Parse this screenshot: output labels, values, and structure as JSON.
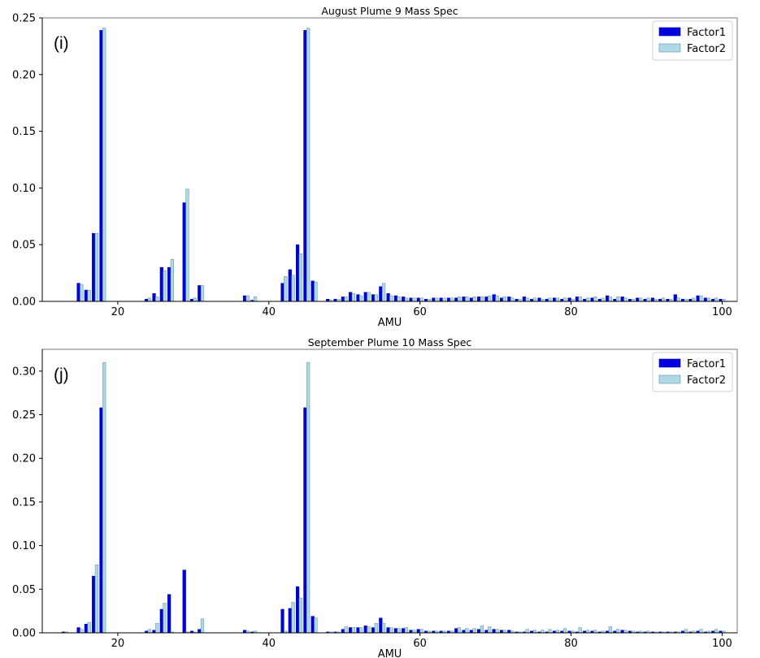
{
  "chart_data": [
    {
      "type": "bar",
      "title": "August Plume 9 Mass Spec",
      "panel_label": "(i)",
      "xlabel": "AMU",
      "ylabel": "",
      "xlim": [
        10,
        102
      ],
      "ylim": [
        0,
        0.25
      ],
      "xticks": [
        20,
        40,
        60,
        80,
        100
      ],
      "yticks": [
        "0.00",
        "0.05",
        "0.10",
        "0.15",
        "0.20",
        "0.25"
      ],
      "legend_position": "top-right",
      "colors": {
        "Factor1": "#0000dd",
        "Factor2": "#add8e6"
      },
      "x": [
        13,
        15,
        16,
        17,
        18,
        24,
        25,
        26,
        27,
        29,
        30,
        31,
        37,
        38,
        42,
        43,
        44,
        45,
        46,
        48,
        49,
        50,
        51,
        52,
        53,
        54,
        55,
        56,
        57,
        58,
        59,
        60,
        61,
        62,
        63,
        64,
        65,
        66,
        67,
        68,
        69,
        70,
        71,
        72,
        73,
        74,
        75,
        76,
        77,
        78,
        79,
        80,
        81,
        82,
        83,
        84,
        85,
        86,
        87,
        88,
        89,
        90,
        91,
        92,
        93,
        94,
        95,
        96,
        97,
        98,
        99,
        100
      ],
      "series": [
        {
          "name": "Factor1",
          "values": [
            0,
            0.016,
            0.01,
            0.06,
            0.239,
            0.002,
            0.007,
            0.03,
            0.03,
            0.087,
            0.002,
            0.014,
            0.005,
            0.001,
            0.016,
            0.028,
            0.05,
            0.239,
            0.018,
            0.002,
            0.002,
            0.004,
            0.008,
            0.006,
            0.008,
            0.006,
            0.013,
            0.007,
            0.005,
            0.004,
            0.003,
            0.003,
            0.002,
            0.003,
            0.003,
            0.003,
            0.003,
            0.004,
            0.003,
            0.004,
            0.004,
            0.006,
            0.003,
            0.004,
            0.002,
            0.004,
            0.002,
            0.003,
            0.002,
            0.003,
            0.002,
            0.003,
            0.004,
            0.002,
            0.003,
            0.002,
            0.005,
            0.002,
            0.004,
            0.002,
            0.003,
            0.002,
            0.003,
            0.002,
            0.002,
            0.006,
            0.002,
            0.002,
            0.005,
            0.003,
            0.002,
            0.002
          ]
        },
        {
          "name": "Factor2",
          "values": [
            0,
            0.015,
            0.01,
            0.06,
            0.241,
            0.003,
            0.004,
            0.027,
            0.037,
            0.099,
            0.003,
            0.014,
            0.005,
            0.004,
            0.022,
            0.023,
            0.042,
            0.241,
            0.017,
            0.001,
            0.002,
            0.004,
            0.007,
            0.005,
            0.008,
            0.006,
            0.016,
            0.005,
            0.004,
            0.003,
            0.003,
            0.003,
            0.002,
            0.003,
            0.003,
            0.003,
            0.004,
            0.004,
            0.004,
            0.004,
            0.005,
            0.005,
            0.004,
            0.003,
            0.002,
            0.003,
            0.003,
            0.002,
            0.003,
            0.003,
            0.003,
            0.002,
            0.004,
            0.003,
            0.004,
            0.003,
            0.004,
            0.004,
            0.003,
            0.002,
            0.003,
            0.003,
            0.002,
            0.003,
            0.002,
            0.003,
            0.002,
            0.003,
            0.005,
            0.003,
            0.003,
            0.002
          ]
        }
      ]
    },
    {
      "type": "bar",
      "title": "September Plume 10 Mass Spec",
      "panel_label": "(j)",
      "xlabel": "AMU",
      "ylabel": "",
      "xlim": [
        10,
        102
      ],
      "ylim": [
        0,
        0.325
      ],
      "xticks": [
        20,
        40,
        60,
        80,
        100
      ],
      "yticks": [
        "0.00",
        "0.05",
        "0.10",
        "0.15",
        "0.20",
        "0.25",
        "0.30"
      ],
      "legend_position": "top-right",
      "colors": {
        "Factor1": "#0000dd",
        "Factor2": "#add8e6"
      },
      "x": [
        13,
        15,
        16,
        17,
        18,
        24,
        25,
        26,
        27,
        29,
        30,
        31,
        37,
        38,
        42,
        43,
        44,
        45,
        46,
        48,
        49,
        50,
        51,
        52,
        53,
        54,
        55,
        56,
        57,
        58,
        59,
        60,
        61,
        62,
        63,
        64,
        65,
        66,
        67,
        68,
        69,
        70,
        71,
        72,
        73,
        74,
        75,
        76,
        77,
        78,
        79,
        80,
        81,
        82,
        83,
        84,
        85,
        86,
        87,
        88,
        89,
        90,
        91,
        92,
        93,
        94,
        95,
        96,
        97,
        98,
        99,
        100
      ],
      "series": [
        {
          "name": "Factor1",
          "values": [
            0.001,
            0.006,
            0.01,
            0.065,
            0.258,
            0.002,
            0.003,
            0.027,
            0.044,
            0.072,
            0.002,
            0.004,
            0.003,
            0.001,
            0.027,
            0.028,
            0.053,
            0.258,
            0.019,
            0.001,
            0.001,
            0.004,
            0.006,
            0.006,
            0.008,
            0.006,
            0.017,
            0.006,
            0.005,
            0.005,
            0.003,
            0.004,
            0.002,
            0.002,
            0.002,
            0.002,
            0.005,
            0.003,
            0.003,
            0.004,
            0.003,
            0.004,
            0.003,
            0.003,
            0.001,
            0.001,
            0.002,
            0.001,
            0.001,
            0.002,
            0.002,
            0.002,
            0.001,
            0.002,
            0.002,
            0.001,
            0.002,
            0.002,
            0.003,
            0.002,
            0.001,
            0.001,
            0.001,
            0.001,
            0.001,
            0.001,
            0.002,
            0.001,
            0.002,
            0.001,
            0.002,
            0.002
          ]
        },
        {
          "name": "Factor2",
          "values": [
            0.001,
            0.004,
            0.012,
            0.078,
            0.31,
            0.004,
            0.011,
            0.034,
            0.001,
            0.001,
            0.001,
            0.016,
            0.002,
            0.002,
            0.002,
            0.035,
            0.04,
            0.31,
            0.017,
            0.001,
            0.001,
            0.007,
            0.006,
            0.006,
            0.007,
            0.011,
            0.011,
            0.006,
            0.005,
            0.006,
            0.003,
            0.004,
            0.002,
            0.002,
            0.002,
            0.002,
            0.006,
            0.005,
            0.005,
            0.008,
            0.007,
            0.004,
            0.003,
            0.002,
            0.001,
            0.004,
            0.003,
            0.003,
            0.004,
            0.003,
            0.005,
            0.002,
            0.006,
            0.003,
            0.003,
            0.002,
            0.007,
            0.004,
            0.003,
            0.002,
            0.002,
            0.002,
            0.001,
            0.001,
            0.001,
            0.001,
            0.004,
            0.002,
            0.004,
            0.002,
            0.004,
            0.002
          ]
        }
      ]
    }
  ]
}
